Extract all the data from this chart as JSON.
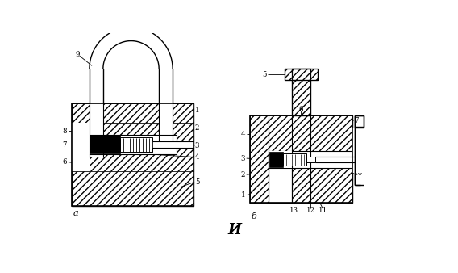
{
  "bg_color": "#ffffff",
  "lc": "#000000",
  "title_i": "И",
  "label_a": "а",
  "label_b": "б"
}
